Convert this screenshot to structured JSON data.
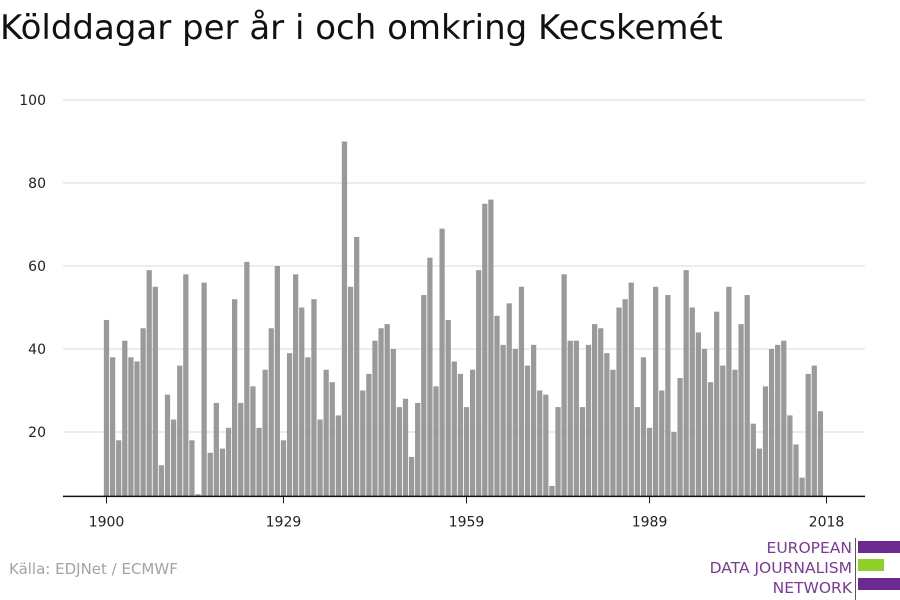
{
  "title": "Kölddagar per år i och omkring Kecskemét",
  "source": "Källa: EDJNet / ECMWF",
  "logo": {
    "lines": [
      "EUROPEAN",
      "DATA JOURNALISM",
      "NETWORK"
    ],
    "bar_colors": [
      "#6a2a8e",
      "#8fd12a",
      "#6a2a8e"
    ]
  },
  "colors": {
    "bar": "#9a9a9a",
    "grid": "#d9d9d9",
    "axis": "#111111",
    "text": "#222222"
  },
  "chart_data": {
    "type": "bar",
    "x_start": 1900,
    "x_end": 2018,
    "xticks": [
      1900,
      1929,
      1959,
      1989,
      2018
    ],
    "yticks": [
      20,
      40,
      60,
      80,
      100
    ],
    "ylim": [
      4.5,
      102
    ],
    "grid": true,
    "values": [
      47,
      38,
      18,
      42,
      38,
      37,
      45,
      59,
      55,
      12,
      29,
      23,
      36,
      58,
      18,
      5,
      56,
      15,
      27,
      16,
      21,
      52,
      27,
      61,
      31,
      21,
      35,
      45,
      60,
      18,
      39,
      58,
      50,
      38,
      52,
      23,
      35,
      32,
      24,
      90,
      55,
      67,
      30,
      34,
      42,
      45,
      46,
      40,
      26,
      28,
      14,
      27,
      53,
      62,
      31,
      69,
      47,
      37,
      34,
      26,
      35,
      59,
      75,
      76,
      48,
      41,
      51,
      40,
      55,
      36,
      41,
      30,
      29,
      7,
      26,
      58,
      42,
      42,
      26,
      41,
      46,
      45,
      39,
      35,
      50,
      52,
      56,
      26,
      38,
      21,
      55,
      30,
      53,
      20,
      33,
      59,
      50,
      44,
      40,
      32,
      49,
      36,
      55,
      35,
      46,
      53,
      22,
      16,
      31,
      40,
      41,
      42,
      24,
      17,
      9,
      34,
      36,
      25
    ]
  }
}
